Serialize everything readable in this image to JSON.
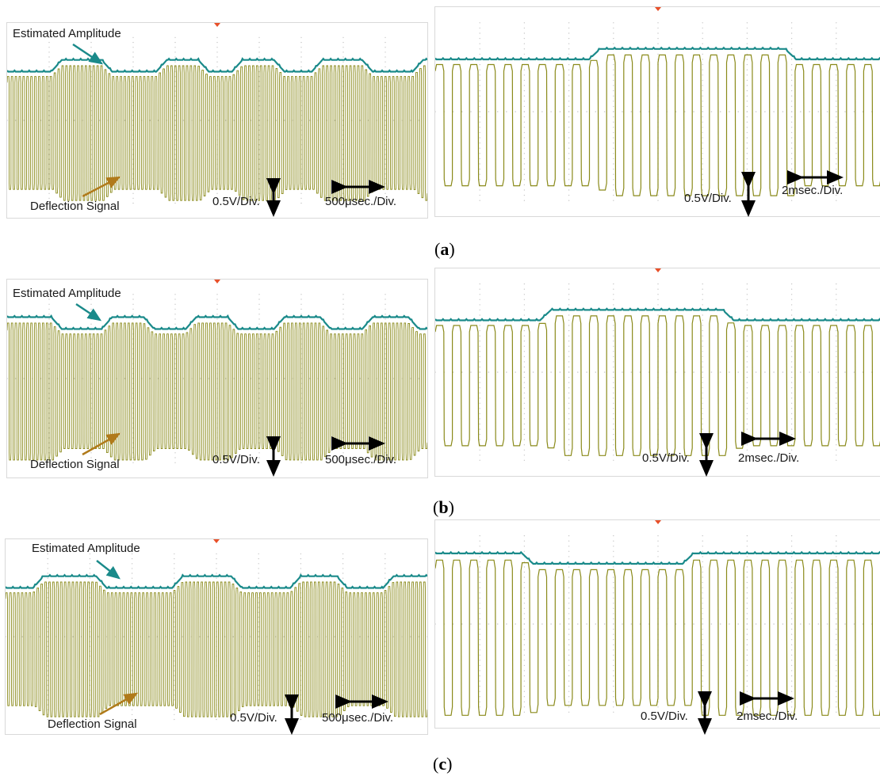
{
  "colors": {
    "deflection": "#8a8a1a",
    "amplitude": "#1a8a8a",
    "trigger": "#e8502a",
    "arrow_amp": "#1a8a8a",
    "arrow_def": "#b07a1a"
  },
  "labels": {
    "amplitude": "Estimated Amplitude",
    "deflection": "Deflection Signal",
    "volt_div": "0.5V/Div.",
    "time_fast": "500μsec./Div.",
    "time_slow": "2msec./Div."
  },
  "captions": {
    "a": "a",
    "b": "b",
    "c": "c"
  },
  "chart_data": [
    {
      "type": "line",
      "panel": "a",
      "side": "left",
      "x_unit": "div",
      "cycles": 108,
      "env_levels": [
        0.62,
        0.74
      ],
      "env_schedule": [
        [
          0.0,
          0
        ],
        [
          0.13,
          1
        ],
        [
          0.25,
          0
        ],
        [
          0.38,
          1
        ],
        [
          0.48,
          0
        ],
        [
          0.56,
          1
        ],
        [
          0.66,
          0
        ],
        [
          0.75,
          1
        ],
        [
          0.87,
          0
        ],
        [
          0.99,
          1
        ]
      ],
      "scale": "0.5V/Div.",
      "time": "500μsec./Div."
    },
    {
      "type": "line",
      "panel": "a",
      "side": "right",
      "x_unit": "div",
      "cycles": 26,
      "env_levels": [
        0.62,
        0.72
      ],
      "env_schedule": [
        [
          0.0,
          0
        ],
        [
          0.37,
          1
        ],
        [
          0.81,
          0
        ]
      ],
      "scale": "0.5V/Div.",
      "time": "2msec./Div."
    },
    {
      "type": "line",
      "panel": "b",
      "side": "left",
      "x_unit": "div",
      "cycles": 108,
      "env_levels": [
        0.62,
        0.74
      ],
      "env_schedule": [
        [
          0.0,
          1
        ],
        [
          0.13,
          0
        ],
        [
          0.25,
          1
        ],
        [
          0.35,
          0
        ],
        [
          0.45,
          1
        ],
        [
          0.55,
          0
        ],
        [
          0.66,
          1
        ],
        [
          0.77,
          0
        ],
        [
          0.87,
          1
        ],
        [
          0.98,
          0
        ]
      ],
      "scale": "0.5V/Div.",
      "time": "500μsec./Div."
    },
    {
      "type": "line",
      "panel": "b",
      "side": "right",
      "x_unit": "div",
      "cycles": 26,
      "env_levels": [
        0.62,
        0.72
      ],
      "env_schedule": [
        [
          0.0,
          0
        ],
        [
          0.26,
          1
        ],
        [
          0.67,
          0
        ]
      ],
      "scale": "0.5V/Div.",
      "time": "2msec./Div."
    },
    {
      "type": "line",
      "panel": "c",
      "side": "left",
      "x_unit": "div",
      "cycles": 108,
      "env_levels": [
        0.62,
        0.74
      ],
      "env_schedule": [
        [
          0.0,
          0
        ],
        [
          0.09,
          1
        ],
        [
          0.24,
          0
        ],
        [
          0.42,
          1
        ],
        [
          0.56,
          0
        ],
        [
          0.7,
          1
        ],
        [
          0.81,
          0
        ],
        [
          0.92,
          1
        ]
      ],
      "scale": "0.5V/Div.",
      "time": "500μsec./Div."
    },
    {
      "type": "line",
      "panel": "c",
      "side": "right",
      "x_unit": "div",
      "cycles": 26,
      "env_levels": [
        0.7,
        0.8
      ],
      "env_schedule": [
        [
          0.0,
          1
        ],
        [
          0.22,
          0
        ],
        [
          0.58,
          1
        ]
      ],
      "scale": "0.5V/Div.",
      "time": "2msec./Div."
    }
  ]
}
